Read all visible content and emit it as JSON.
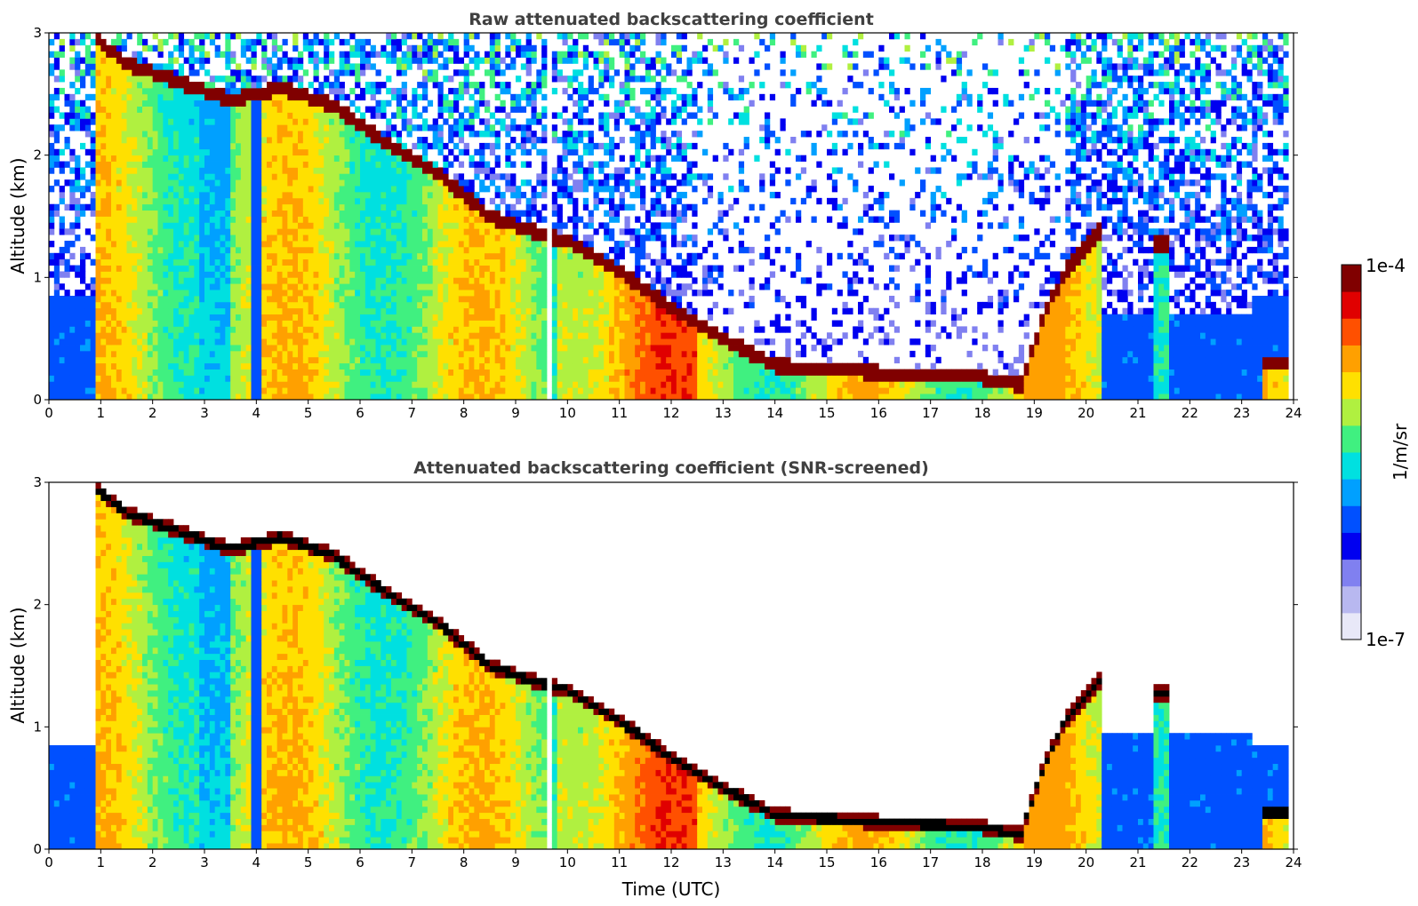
{
  "chart_data": [
    {
      "type": "heatmap",
      "title": "Raw attenuated backscattering coefficient",
      "xlabel": "",
      "ylabel": "Altitude (km)",
      "xlim": [
        0,
        24
      ],
      "ylim": [
        0,
        3
      ],
      "x_ticks": [
        "0",
        "1",
        "2",
        "3",
        "4",
        "5",
        "6",
        "7",
        "8",
        "9",
        "10",
        "11",
        "12",
        "13",
        "14",
        "15",
        "16",
        "17",
        "18",
        "19",
        "20",
        "21",
        "22",
        "23",
        "24"
      ],
      "y_ticks": [
        "0",
        "1",
        "2",
        "3"
      ],
      "cloud_layer": {
        "time": [
          0.9,
          1.5,
          2.5,
          3.5,
          4.5,
          5.5,
          6.5,
          7.5,
          8.5,
          9.5,
          10.0,
          11.0,
          12.0,
          13.0,
          14.0,
          15.0,
          16.0,
          17.0,
          18.0,
          18.7
        ],
        "altitude_km": [
          2.95,
          2.75,
          2.6,
          2.45,
          2.55,
          2.4,
          2.1,
          1.85,
          1.5,
          1.35,
          1.3,
          1.05,
          0.75,
          0.5,
          0.28,
          0.25,
          0.22,
          0.2,
          0.18,
          0.12
        ]
      },
      "rising_layer": {
        "time": [
          18.8,
          19.2,
          19.6,
          20.0,
          20.3
        ],
        "altitude_km": [
          0.2,
          0.7,
          1.05,
          1.25,
          1.4
        ]
      },
      "noise_dominated_above_km": 1.0,
      "mode": "raw"
    },
    {
      "type": "heatmap",
      "title": "Attenuated backscattering coefficient (SNR-screened)",
      "xlabel": "Time (UTC)",
      "ylabel": "Altitude (km)",
      "xlim": [
        0,
        24
      ],
      "ylim": [
        0,
        3
      ],
      "x_ticks": [
        "0",
        "1",
        "2",
        "3",
        "4",
        "5",
        "6",
        "7",
        "8",
        "9",
        "10",
        "11",
        "12",
        "13",
        "14",
        "15",
        "16",
        "17",
        "18",
        "19",
        "20",
        "21",
        "22",
        "23",
        "24"
      ],
      "y_ticks": [
        "0",
        "1",
        "2",
        "3"
      ],
      "mode": "screened"
    }
  ],
  "colorbar": {
    "max_label": "1e-4",
    "min_label": "1e-7",
    "unit_label": "1/m/sr",
    "colors": [
      "#e8e8f8",
      "#b8b8f0",
      "#8080f0",
      "#0000f0",
      "#0050ff",
      "#00a0ff",
      "#00e0e0",
      "#40f080",
      "#b0f040",
      "#ffe000",
      "#ffa000",
      "#ff5000",
      "#e00000",
      "#800000"
    ]
  }
}
